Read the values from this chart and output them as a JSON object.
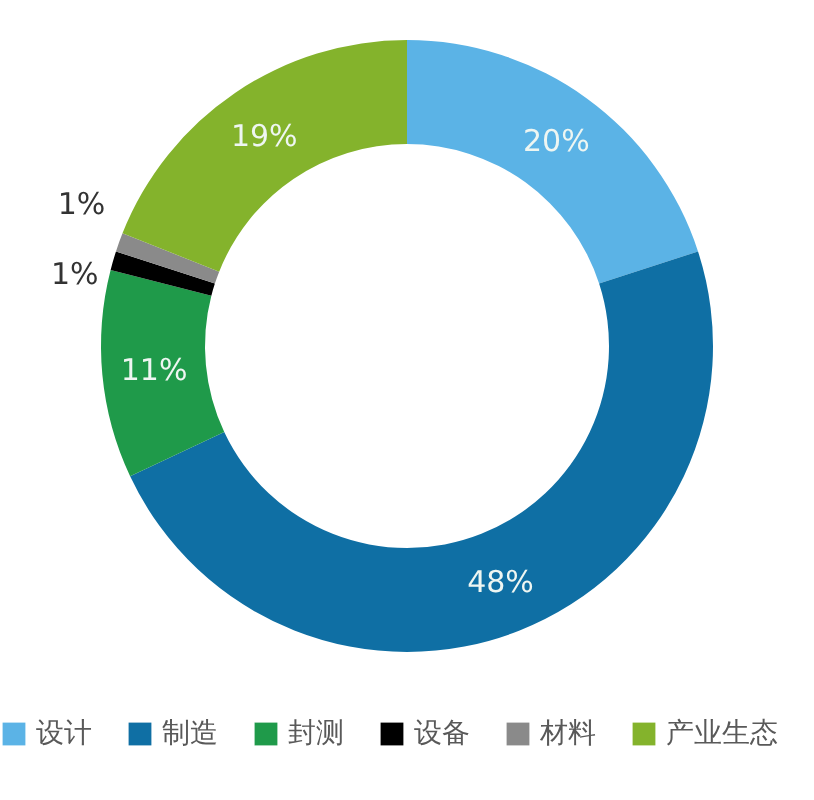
{
  "chart_data": {
    "type": "donut",
    "categories": [
      "设计",
      "制造",
      "封测",
      "设备",
      "材料",
      "产业生态"
    ],
    "values": [
      20,
      48,
      11,
      1,
      1,
      19
    ],
    "colors": [
      "#5bb3e6",
      "#0f6fa4",
      "#1f9a4a",
      "#000000",
      "#8a8a8a",
      "#84b32c"
    ],
    "value_labels": [
      "20%",
      "48%",
      "11%",
      "1%",
      "1%",
      "19%"
    ],
    "legend": "bottom"
  }
}
